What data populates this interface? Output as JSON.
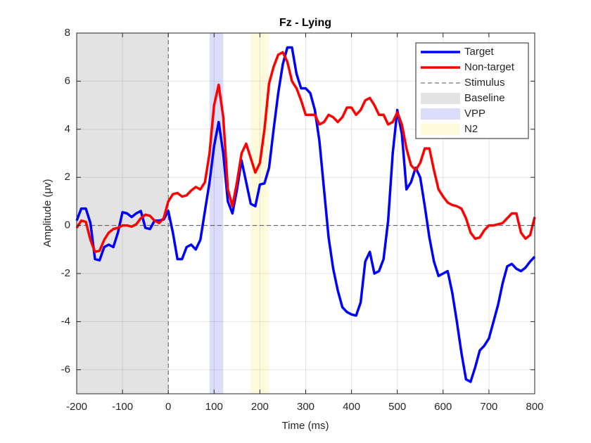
{
  "chart_data": {
    "type": "line",
    "title": "Fz - Lying",
    "xlabel": "Time (ms)",
    "ylabel": "Amplitude (μv)",
    "x": [
      -200,
      -190,
      -180,
      -170,
      -160,
      -150,
      -140,
      -130,
      -120,
      -110,
      -100,
      -90,
      -80,
      -70,
      -60,
      -50,
      -40,
      -30,
      -20,
      -10,
      0,
      10,
      20,
      30,
      40,
      50,
      60,
      70,
      80,
      90,
      100,
      110,
      120,
      130,
      140,
      150,
      160,
      170,
      180,
      190,
      200,
      210,
      220,
      230,
      240,
      250,
      260,
      270,
      280,
      290,
      300,
      310,
      320,
      330,
      340,
      350,
      360,
      370,
      380,
      390,
      400,
      410,
      420,
      430,
      440,
      450,
      460,
      470,
      480,
      490,
      500,
      510,
      520,
      530,
      540,
      550,
      560,
      570,
      580,
      590,
      600,
      610,
      620,
      630,
      640,
      650,
      660,
      670,
      680,
      690,
      700,
      710,
      720,
      730,
      740,
      750,
      760,
      770,
      780,
      790,
      800
    ],
    "series": [
      {
        "name": "Target",
        "color": "#0000ff",
        "values": [
          0.2,
          0.7,
          0.7,
          0.1,
          -1.4,
          -1.45,
          -0.9,
          -0.8,
          -0.9,
          -0.3,
          0.55,
          0.5,
          0.35,
          0.5,
          0.6,
          -0.1,
          -0.15,
          0.2,
          0.2,
          0.25,
          0.6,
          -0.3,
          -1.4,
          -1.4,
          -0.9,
          -0.8,
          -1.0,
          -0.6,
          0.6,
          1.8,
          3.3,
          4.3,
          3.0,
          1.0,
          0.5,
          1.5,
          2.7,
          1.8,
          0.9,
          0.8,
          1.7,
          1.75,
          2.4,
          4.0,
          5.5,
          6.7,
          7.4,
          7.4,
          6.3,
          5.7,
          5.7,
          5.5,
          4.8,
          3.5,
          1.5,
          -0.5,
          -1.8,
          -2.7,
          -3.4,
          -3.6,
          -3.7,
          -3.75,
          -3.2,
          -1.5,
          -1.1,
          -2.0,
          -1.9,
          -1.4,
          0.2,
          3.0,
          4.8,
          3.8,
          1.5,
          1.8,
          2.4,
          2.0,
          0.8,
          -0.5,
          -1.5,
          -2.1,
          -2.0,
          -1.9,
          -2.8,
          -4.0,
          -5.3,
          -6.4,
          -6.5,
          -5.9,
          -5.2,
          -5.0,
          -4.7,
          -4.0,
          -3.3,
          -2.4,
          -1.7,
          -1.6,
          -1.8,
          -1.9,
          -1.75,
          -1.5,
          -1.3
        ]
      },
      {
        "name": "Non-target",
        "color": "#ff0000",
        "values": [
          -0.1,
          0.2,
          0.15,
          -0.6,
          -1.1,
          -1.05,
          -0.6,
          -0.3,
          -0.15,
          -0.1,
          0.0,
          0.0,
          -0.05,
          0.05,
          0.3,
          0.45,
          0.4,
          0.2,
          0.1,
          0.3,
          1.0,
          1.3,
          1.35,
          1.2,
          1.25,
          1.45,
          1.6,
          1.5,
          1.8,
          3.0,
          5.0,
          5.85,
          4.5,
          1.5,
          0.8,
          1.8,
          3.0,
          3.4,
          2.8,
          2.2,
          2.6,
          4.0,
          5.9,
          6.6,
          7.1,
          7.2,
          6.8,
          6.0,
          5.7,
          5.2,
          4.6,
          4.6,
          4.6,
          4.2,
          4.3,
          4.6,
          4.5,
          4.3,
          4.5,
          4.9,
          4.9,
          4.6,
          4.8,
          5.2,
          5.3,
          5.0,
          4.6,
          4.6,
          4.2,
          4.3,
          4.7,
          4.2,
          3.2,
          2.5,
          2.3,
          2.6,
          3.2,
          3.2,
          2.3,
          1.5,
          1.2,
          0.95,
          0.85,
          0.8,
          0.7,
          0.3,
          -0.3,
          -0.55,
          -0.5,
          -0.2,
          0.0,
          0.0,
          0.05,
          0.1,
          0.3,
          0.5,
          0.5,
          -0.3,
          -0.55,
          -0.4,
          0.35
        ]
      }
    ],
    "stimulus": {
      "name": "Stimulus",
      "x": 0,
      "color": "#555555"
    },
    "regions": [
      {
        "name": "Baseline",
        "range": [
          -200,
          0
        ],
        "color": "#e3e3e3"
      },
      {
        "name": "VPP",
        "range": [
          90,
          120
        ],
        "color": "#dcdcfb"
      },
      {
        "name": "N2",
        "range": [
          180,
          220
        ],
        "color": "#fdfbdc"
      }
    ],
    "xlim": [
      -200,
      800
    ],
    "xticks": [
      -200,
      -100,
      0,
      100,
      200,
      300,
      400,
      500,
      600,
      700,
      800
    ],
    "ylim": [
      -7,
      8
    ],
    "yticks": [
      -6,
      -4,
      -2,
      0,
      2,
      4,
      6,
      8
    ],
    "grid": true,
    "legend": "upper-right"
  }
}
